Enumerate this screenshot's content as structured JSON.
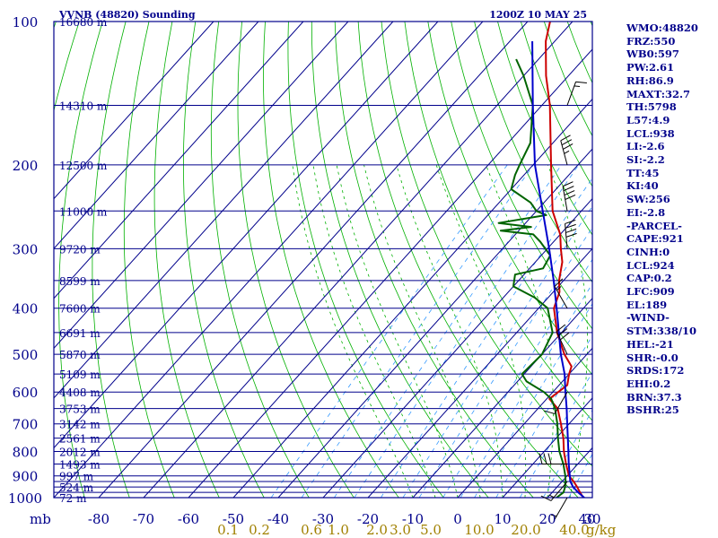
{
  "chart_data": {
    "type": "line",
    "title": "VVNB (48820) Sounding",
    "valid_time": "1200Z 10 MAY 25",
    "y_axis_unit": "mb",
    "pressure_ticks": [
      "100",
      "200",
      "300",
      "400",
      "500",
      "600",
      "700",
      "800",
      "900",
      "1000"
    ],
    "pressure_levels": [
      100,
      150,
      200,
      250,
      300,
      350,
      400,
      450,
      500,
      550,
      600,
      650,
      700,
      750,
      800,
      850,
      900,
      925,
      950,
      975,
      1000
    ],
    "temperature_ticks": [
      "-80",
      "-70",
      "-60",
      "-50",
      "-40",
      "-30",
      "-20",
      "-10",
      "0",
      "10",
      "20",
      "30",
      "40"
    ],
    "xlim": [
      -80,
      40
    ],
    "mixing_ratio_labels": [
      "0.1",
      "0.2",
      "0.6",
      "1.0",
      "2.0",
      "3.0",
      "5.0",
      "10.0",
      "20.0",
      "40.0"
    ],
    "mixing_ratio_unit": "g/kg",
    "height_labels": [
      {
        "p": 100,
        "label": "16680 m"
      },
      {
        "p": 150,
        "label": "14310 m"
      },
      {
        "p": 200,
        "label": "12500 m"
      },
      {
        "p": 250,
        "label": "11000 m"
      },
      {
        "p": 300,
        "label": "9720 m"
      },
      {
        "p": 350,
        "label": "8599 m"
      },
      {
        "p": 400,
        "label": "7600 m"
      },
      {
        "p": 450,
        "label": "6691 m"
      },
      {
        "p": 500,
        "label": "5870 m"
      },
      {
        "p": 550,
        "label": "5109 m"
      },
      {
        "p": 600,
        "label": "4408 m"
      },
      {
        "p": 650,
        "label": "3753 m"
      },
      {
        "p": 700,
        "label": "3142 m"
      },
      {
        "p": 750,
        "label": "2561 m"
      },
      {
        "p": 800,
        "label": "2012 m"
      },
      {
        "p": 850,
        "label": "1493 m"
      },
      {
        "p": 900,
        "label": "997 m"
      },
      {
        "p": 950,
        "label": "524 m"
      },
      {
        "p": 1000,
        "label": "72 m"
      }
    ],
    "series": [
      {
        "kind": "temperature",
        "color": "#cc0000",
        "points": [
          {
            "p": 1000,
            "t": 28.0
          },
          {
            "p": 975,
            "t": 26.2
          },
          {
            "p": 950,
            "t": 24.5
          },
          {
            "p": 925,
            "t": 22.6
          },
          {
            "p": 900,
            "t": 20.4
          },
          {
            "p": 850,
            "t": 17.4
          },
          {
            "p": 800,
            "t": 14.4
          },
          {
            "p": 750,
            "t": 11.6
          },
          {
            "p": 700,
            "t": 8.2
          },
          {
            "p": 650,
            "t": 4.4
          },
          {
            "p": 620,
            "t": 0.6
          },
          {
            "p": 600,
            "t": 1.2
          },
          {
            "p": 580,
            "t": 1.8
          },
          {
            "p": 550,
            "t": 0.0
          },
          {
            "p": 530,
            "t": -1.0
          },
          {
            "p": 500,
            "t": -5.0
          },
          {
            "p": 450,
            "t": -11.0
          },
          {
            "p": 400,
            "t": -16.6
          },
          {
            "p": 370,
            "t": -18.6
          },
          {
            "p": 350,
            "t": -21.0
          },
          {
            "p": 320,
            "t": -24.0
          },
          {
            "p": 300,
            "t": -27.0
          },
          {
            "p": 280,
            "t": -30.0
          },
          {
            "p": 250,
            "t": -36.4
          },
          {
            "p": 200,
            "t": -46.0
          },
          {
            "p": 150,
            "t": -58.2
          },
          {
            "p": 130,
            "t": -65.0
          },
          {
            "p": 110,
            "t": -72.0
          },
          {
            "p": 100,
            "t": -75.0
          }
        ]
      },
      {
        "kind": "dewpoint",
        "color": "#006400",
        "points": [
          {
            "p": 1000,
            "t": 22.0
          },
          {
            "p": 975,
            "t": 22.5
          },
          {
            "p": 950,
            "t": 21.8
          },
          {
            "p": 925,
            "t": 20.8
          },
          {
            "p": 900,
            "t": 19.6
          },
          {
            "p": 850,
            "t": 16.8
          },
          {
            "p": 800,
            "t": 13.4
          },
          {
            "p": 750,
            "t": 10.4
          },
          {
            "p": 700,
            "t": 7.4
          },
          {
            "p": 650,
            "t": 3.8
          },
          {
            "p": 620,
            "t": 1.0
          },
          {
            "p": 600,
            "t": -2.0
          },
          {
            "p": 570,
            "t": -8.0
          },
          {
            "p": 550,
            "t": -10.5
          },
          {
            "p": 500,
            "t": -10.0
          },
          {
            "p": 450,
            "t": -12.0
          },
          {
            "p": 400,
            "t": -18.0
          },
          {
            "p": 380,
            "t": -23.0
          },
          {
            "p": 360,
            "t": -30.0
          },
          {
            "p": 340,
            "t": -32.0
          },
          {
            "p": 330,
            "t": -27.0
          },
          {
            "p": 310,
            "t": -28.0
          },
          {
            "p": 290,
            "t": -33.0
          },
          {
            "p": 280,
            "t": -36.0
          },
          {
            "p": 275,
            "t": -44.0
          },
          {
            "p": 270,
            "t": -38.0
          },
          {
            "p": 265,
            "t": -46.0
          },
          {
            "p": 255,
            "t": -37.0
          },
          {
            "p": 250,
            "t": -40.0
          },
          {
            "p": 240,
            "t": -43.0
          },
          {
            "p": 225,
            "t": -50.0
          },
          {
            "p": 210,
            "t": -52.0
          },
          {
            "p": 200,
            "t": -53.0
          },
          {
            "p": 180,
            "t": -55.0
          },
          {
            "p": 150,
            "t": -62.0
          },
          {
            "p": 130,
            "t": -70.0
          },
          {
            "p": 120,
            "t": -75.0
          }
        ]
      },
      {
        "kind": "parcel",
        "color": "#0000cc",
        "points": [
          {
            "p": 1000,
            "t": 28.2
          },
          {
            "p": 975,
            "t": 25.8
          },
          {
            "p": 950,
            "t": 23.6
          },
          {
            "p": 924,
            "t": 21.8
          },
          {
            "p": 900,
            "t": 20.6
          },
          {
            "p": 850,
            "t": 18.0
          },
          {
            "p": 800,
            "t": 15.4
          },
          {
            "p": 750,
            "t": 12.6
          },
          {
            "p": 700,
            "t": 9.6
          },
          {
            "p": 650,
            "t": 6.4
          },
          {
            "p": 600,
            "t": 2.8
          },
          {
            "p": 550,
            "t": -1.0
          },
          {
            "p": 500,
            "t": -5.8
          },
          {
            "p": 450,
            "t": -10.6
          },
          {
            "p": 400,
            "t": -16.0
          },
          {
            "p": 350,
            "t": -22.2
          },
          {
            "p": 300,
            "t": -29.6
          },
          {
            "p": 250,
            "t": -38.6
          },
          {
            "p": 200,
            "t": -49.6
          },
          {
            "p": 150,
            "t": -62.0
          },
          {
            "p": 130,
            "t": -68.0
          },
          {
            "p": 110,
            "t": -75.0
          }
        ]
      }
    ],
    "wind_barbs": [
      {
        "p": 150,
        "dir": 20,
        "speed": 15
      },
      {
        "p": 200,
        "dir": 345,
        "speed": 35
      },
      {
        "p": 250,
        "dir": 350,
        "speed": 40
      },
      {
        "p": 300,
        "dir": 355,
        "speed": 40
      },
      {
        "p": 400,
        "dir": 330,
        "speed": 15
      },
      {
        "p": 500,
        "dir": 335,
        "speed": 30
      },
      {
        "p": 600,
        "dir": 210,
        "speed": 10
      },
      {
        "p": 850,
        "dir": 270,
        "speed": 30
      },
      {
        "p": 925,
        "dir": 220,
        "speed": 15
      },
      {
        "p": 1000,
        "dir": 210,
        "speed": 5
      }
    ],
    "grid": true,
    "legend": "none"
  },
  "indices": [
    {
      "label": "WMO",
      "value": "48820",
      "sep": ":"
    },
    {
      "label": "FRZ",
      "value": "550",
      "sep": ":"
    },
    {
      "label": "WB0",
      "value": "597",
      "sep": ":"
    },
    {
      "label": "PW",
      "value": "2.61",
      "sep": ":"
    },
    {
      "label": "RH",
      "value": "86.9",
      "sep": ":"
    },
    {
      "label": "MAXT",
      "value": "32.7",
      "sep": ":"
    },
    {
      "label": "TH",
      "value": "5798",
      "sep": ":"
    },
    {
      "label": "L57",
      "value": "4.9",
      "sep": ":"
    },
    {
      "label": "LCL",
      "value": "938",
      "sep": ":"
    },
    {
      "label": "LI",
      "value": "-2.6",
      "sep": ":"
    },
    {
      "label": "SI",
      "value": "-2.2",
      "sep": ":"
    },
    {
      "label": "TT",
      "value": "45",
      "sep": ":"
    },
    {
      "label": "KI",
      "value": "40",
      "sep": ":"
    },
    {
      "label": "SW",
      "value": "256",
      "sep": ":"
    },
    {
      "label": "EI",
      "value": "-2.8",
      "sep": ":"
    },
    {
      "label": "-PARCEL-",
      "value": "",
      "sep": ""
    },
    {
      "label": "CAPE",
      "value": "921",
      "sep": ":"
    },
    {
      "label": "CINH",
      "value": "0",
      "sep": ":"
    },
    {
      "label": "LCL",
      "value": "924",
      "sep": ":"
    },
    {
      "label": "CAP",
      "value": "0.2",
      "sep": ":"
    },
    {
      "label": "LFC",
      "value": "909",
      "sep": ":"
    },
    {
      "label": "EL",
      "value": "189",
      "sep": ":"
    },
    {
      "label": "-WIND-",
      "value": "",
      "sep": ""
    },
    {
      "label": "STM",
      "value": "338/10",
      "sep": ":"
    },
    {
      "label": "HEL",
      "value": "-21",
      "sep": ":"
    },
    {
      "label": "SHR",
      "value": "-0.0",
      "sep": ":"
    },
    {
      "label": "SRDS",
      "value": "172",
      "sep": ":"
    },
    {
      "label": "EHI",
      "value": "0.2",
      "sep": ":"
    },
    {
      "label": "BRN",
      "value": "37.3",
      "sep": ":"
    },
    {
      "label": "BSHR",
      "value": "25",
      "sep": ":"
    }
  ],
  "colors": {
    "frame": "#00008b",
    "text": "#00008b",
    "dry_adiabat": "#00b000",
    "moist_adiabat": "#00b000",
    "mixing_ratio": "#3399ff",
    "mixing_label": "#a08000",
    "barb": "#000000"
  }
}
